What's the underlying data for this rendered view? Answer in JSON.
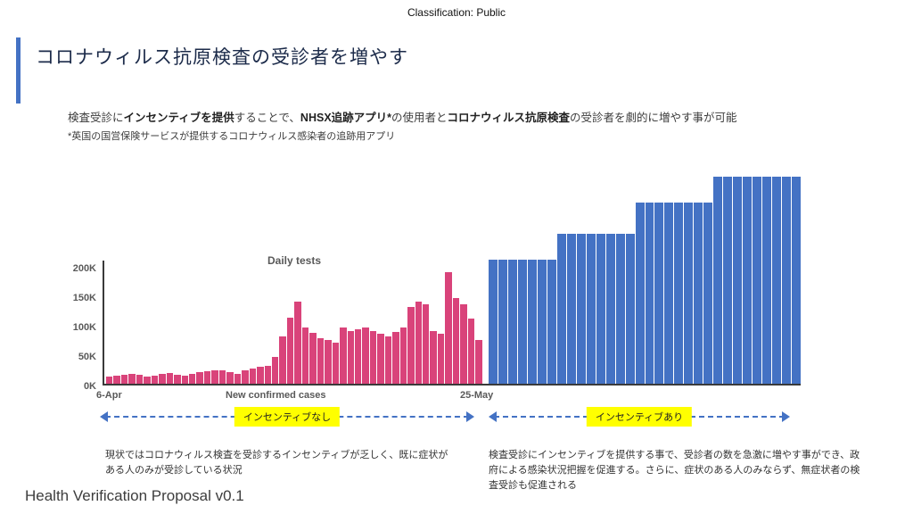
{
  "classification": "Classification: Public",
  "title": "コロナウィルス抗原検査の受診者を増やす",
  "intro": {
    "parts": [
      {
        "text": "検査受診に",
        "bold": false
      },
      {
        "text": "インセンティブを提供",
        "bold": true
      },
      {
        "text": "することで、",
        "bold": false
      },
      {
        "text": "NHSX追跡アプリ*",
        "bold": true
      },
      {
        "text": "の使用者と",
        "bold": false
      },
      {
        "text": "コロナウィルス抗原検査",
        "bold": true
      },
      {
        "text": "の受診者を劇的に増やす事が可能",
        "bold": false
      }
    ],
    "footnote": "*英国の国営保険サービスが提供するコロナウィルス感染者の追跡用アプリ"
  },
  "chart_data": {
    "type": "bar",
    "title": "Daily tests",
    "unit": "K",
    "ylim": [
      0,
      200
    ],
    "y_ticks": [
      200,
      150,
      100,
      50,
      0
    ],
    "y_tick_labels": [
      "200K",
      "150K",
      "100K",
      "50K",
      "0K"
    ],
    "x_axis": {
      "start_label": "6-Apr",
      "mid_label": "New confirmed cases",
      "end_label": "25-May"
    },
    "series": [
      {
        "name": "actual daily tests (no incentive)",
        "color": "#D9437A",
        "values": [
          12,
          14,
          15,
          16,
          15,
          12,
          14,
          17,
          18,
          15,
          13,
          16,
          19,
          21,
          22,
          23,
          19,
          17,
          22,
          26,
          29,
          31,
          45,
          80,
          112,
          140,
          95,
          86,
          78,
          75,
          70,
          95,
          90,
          92,
          95,
          90,
          85,
          80,
          88,
          95,
          130,
          140,
          135,
          90,
          85,
          190,
          145,
          135,
          110,
          75
        ]
      },
      {
        "name": "projected daily tests (with incentive)",
        "color": "#4472C4",
        "groups": [
          {
            "value": 210,
            "count": 7
          },
          {
            "value": 255,
            "count": 8
          },
          {
            "value": 308,
            "count": 8
          },
          {
            "value": 352,
            "count": 9
          }
        ]
      }
    ]
  },
  "annotations": {
    "left_label": "インセンティブなし",
    "right_label": "インセンティブあり",
    "left_text": "現状ではコロナウィルス検査を受診するインセンティブが乏しく、既に症状がある人のみが受診している状況",
    "right_text": "検査受診にインセンティブを提供する事で、受診者の数を急激に増やす事ができ、政府による感染状況把握を促進する。さらに、症状のある人のみならず、無症状者の検査受診も促進される"
  },
  "footer": "Health Verification Proposal v0.1",
  "colors": {
    "accent": "#4472C4",
    "pink": "#D9437A",
    "blue": "#4472C4",
    "highlight": "#FFFF00"
  }
}
